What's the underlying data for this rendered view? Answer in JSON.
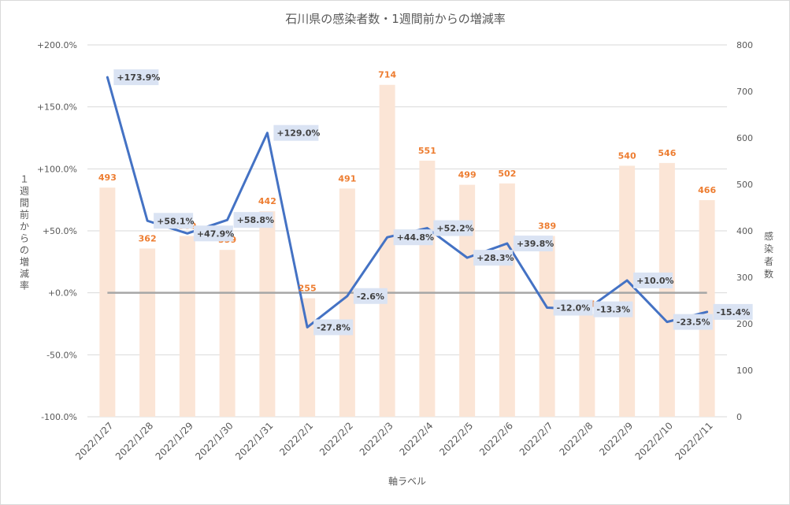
{
  "chart_data": {
    "type": "bar",
    "title": "石川県の感染者数・1週間前からの増減率",
    "xlabel": "軸ラベル",
    "ylabel_left": "１週間前からの増減率",
    "ylabel_right": "感染者数",
    "categories": [
      "2022/1/27",
      "2022/1/28",
      "2022/1/29",
      "2022/1/30",
      "2022/1/31",
      "2022/2/1",
      "2022/2/2",
      "2022/2/3",
      "2022/2/4",
      "2022/2/5",
      "2022/2/6",
      "2022/2/7",
      "2022/2/8",
      "2022/2/9",
      "2022/2/10",
      "2022/2/11"
    ],
    "series": [
      {
        "name": "感染者数",
        "type": "bar",
        "axis": "right",
        "color": "#FBE5D6",
        "label_color": "#ED7D31",
        "values": [
          493,
          362,
          389,
          359,
          442,
          255,
          491,
          714,
          551,
          499,
          502,
          389,
          221,
          540,
          546,
          466
        ],
        "labels": [
          "493",
          "362",
          "389",
          "359",
          "442",
          "255",
          "491",
          "714",
          "551",
          "499",
          "502",
          "389",
          "221",
          "540",
          "546",
          "466"
        ]
      },
      {
        "name": "1週間前からの増減率",
        "type": "line",
        "axis": "left",
        "color": "#4472C4",
        "values": [
          173.9,
          58.1,
          47.9,
          58.8,
          129.0,
          -27.8,
          -2.6,
          44.8,
          52.2,
          28.3,
          39.8,
          -12.0,
          -13.3,
          10.0,
          -23.5,
          -15.4
        ],
        "labels": [
          "+173.9%",
          "+58.1%",
          "+47.9%",
          "+58.8%",
          "+129.0%",
          "-27.8%",
          "-2.6%",
          "+44.8%",
          "+52.2%",
          "+28.3%",
          "+39.8%",
          "-12.0%",
          "-13.3%",
          "+10.0%",
          "-23.5%",
          "-15.4%"
        ]
      }
    ],
    "y_left": {
      "min": -100,
      "max": 200,
      "step": 50,
      "ticks": [
        "+200.0%",
        "+150.0%",
        "+100.0%",
        "+50.0%",
        "+0.0%",
        "-50.0%",
        "-100.0%"
      ]
    },
    "y_right": {
      "min": 0,
      "max": 800,
      "step": 100,
      "ticks": [
        "800",
        "700",
        "600",
        "500",
        "400",
        "300",
        "200",
        "100",
        "0"
      ]
    },
    "baseline": {
      "value": 0,
      "color": "#A6A6A6"
    },
    "grid": true,
    "gridline_color": "#D9D9D9",
    "label_box_color": "#DAE3F3"
  }
}
